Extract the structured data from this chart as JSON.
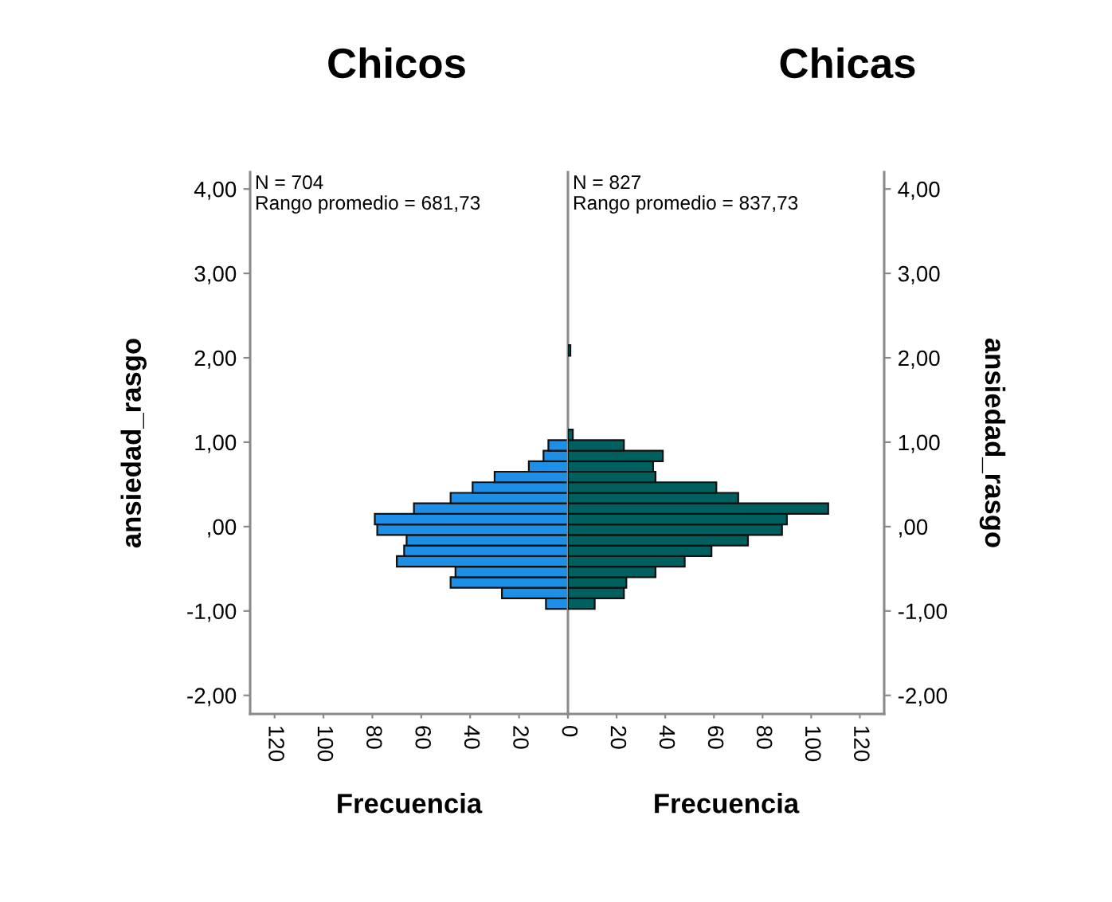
{
  "chart_data": [
    {
      "type": "histogram",
      "orientation": "horizontal",
      "title": "Chicos",
      "xlabel": "Frecuencia",
      "ylabel": "ansiedad_rasgo",
      "annotations": [
        "N = 704",
        "Rango promedio = 681,73"
      ],
      "color": "#1e8fe6",
      "bins": [
        -0.975,
        -0.85,
        -0.725,
        -0.6,
        -0.475,
        -0.35,
        -0.225,
        -0.1,
        0.025,
        0.15,
        0.275,
        0.4,
        0.525,
        0.65,
        0.775,
        0.9,
        1.025
      ],
      "values": [
        9,
        27,
        48,
        46,
        70,
        67,
        66,
        78,
        79,
        63,
        48,
        39,
        30,
        16,
        10,
        8
      ],
      "xlim": [
        130,
        0
      ],
      "xticks": [
        0,
        20,
        40,
        60,
        80,
        100,
        120
      ],
      "ylim": [
        -2.22,
        4.2
      ],
      "yticks": [
        {
          "value": -2,
          "label": "-2,00"
        },
        {
          "value": -1,
          "label": "-1,00"
        },
        {
          "value": 0,
          "label": ",00"
        },
        {
          "value": 1,
          "label": "1,00"
        },
        {
          "value": 2,
          "label": "2,00"
        },
        {
          "value": 3,
          "label": "3,00"
        },
        {
          "value": 4,
          "label": "4,00"
        }
      ]
    },
    {
      "type": "histogram",
      "orientation": "horizontal",
      "title": "Chicas",
      "xlabel": "Frecuencia",
      "ylabel": "ansiedad_rasgo",
      "annotations": [
        "N = 827",
        "Rango promedio = 837,73"
      ],
      "color": "#00605f",
      "bins": [
        -0.975,
        -0.85,
        -0.725,
        -0.6,
        -0.475,
        -0.35,
        -0.225,
        -0.1,
        0.025,
        0.15,
        0.275,
        0.4,
        0.525,
        0.65,
        0.775,
        0.9,
        1.025,
        1.15,
        2.025,
        2.15
      ],
      "values": [
        11,
        23,
        24,
        36,
        48,
        59,
        74,
        88,
        90,
        107,
        70,
        61,
        36,
        35,
        39,
        23,
        2,
        0,
        1
      ],
      "xlim": [
        0,
        130
      ],
      "xticks": [
        {
          "value": 0,
          "label": null
        },
        20,
        40,
        60,
        80,
        100,
        120
      ],
      "ylim": [
        -2.22,
        4.2
      ],
      "yticks": [
        {
          "value": -2,
          "label": "-2,00"
        },
        {
          "value": -1,
          "label": "-1,00"
        },
        {
          "value": 0,
          "label": ",00"
        },
        {
          "value": 1,
          "label": "1,00"
        },
        {
          "value": 2,
          "label": "2,00"
        },
        {
          "value": 3,
          "label": "3,00"
        },
        {
          "value": 4,
          "label": "4,00"
        }
      ]
    }
  ]
}
